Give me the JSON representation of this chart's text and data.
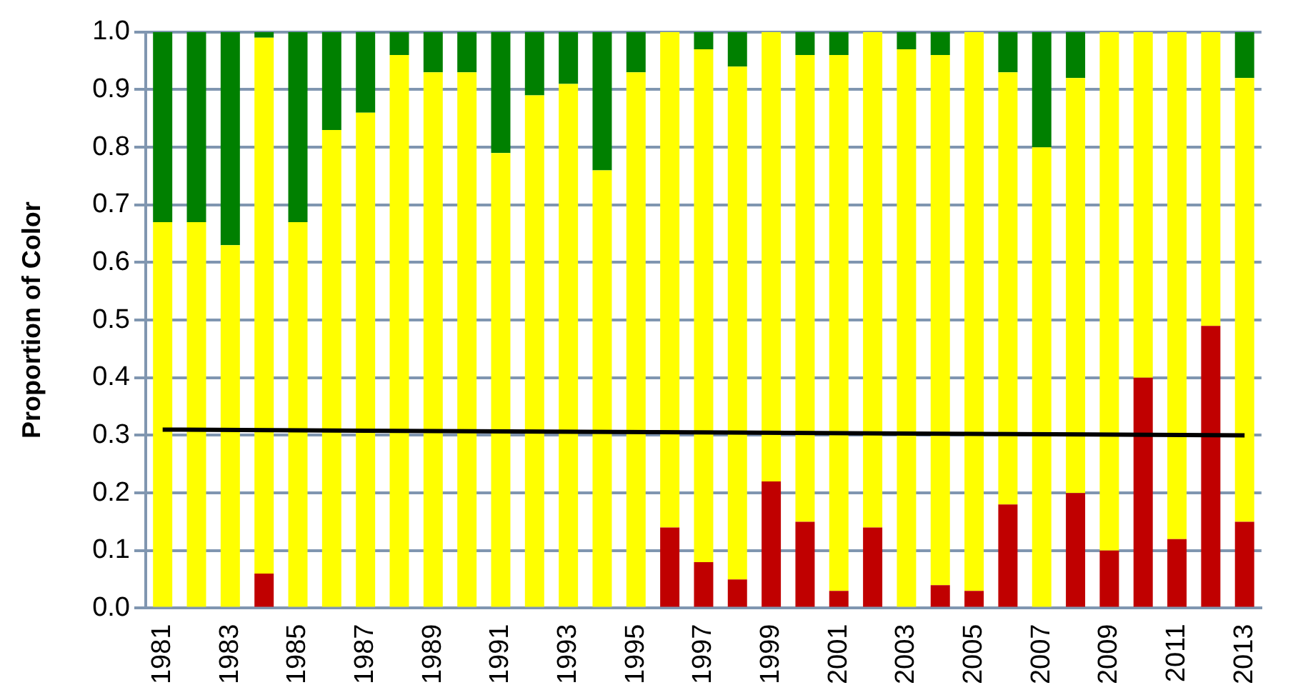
{
  "chart_data": {
    "type": "bar",
    "stacked": true,
    "ylabel": "Proportion of Color",
    "categories": [
      "1981",
      null,
      "1983",
      null,
      "1985",
      null,
      "1987",
      null,
      "1989",
      null,
      "1991",
      null,
      "1993",
      null,
      "1995",
      null,
      "1997",
      null,
      "1999",
      null,
      "2001",
      null,
      "2003",
      null,
      "2005",
      null,
      "2007",
      null,
      "2009",
      null,
      "2011",
      null,
      "2013"
    ],
    "series": [
      {
        "color": "#c00000",
        "values": [
          0,
          0,
          0,
          0.06,
          0,
          0,
          0,
          0,
          0,
          0,
          0,
          0,
          0,
          0,
          0,
          0.14,
          0.08,
          0.05,
          0.22,
          0.15,
          0.03,
          0.14,
          0,
          0.04,
          0.03,
          0.18,
          0,
          0.2,
          0.1,
          0.4,
          0.12,
          0.49,
          0.15
        ]
      },
      {
        "color": "#ffff00",
        "values": [
          0.67,
          0.67,
          0.63,
          0.93,
          0.67,
          0.83,
          0.86,
          0.96,
          0.93,
          0.93,
          0.79,
          0.89,
          0.91,
          0.76,
          0.93,
          0.86,
          0.89,
          0.89,
          0.78,
          0.81,
          0.93,
          0.86,
          0.97,
          0.92,
          0.97,
          0.75,
          0.8,
          0.72,
          0.9,
          0.6,
          0.88,
          0.51,
          0.77
        ]
      },
      {
        "color": "#008000",
        "values": [
          0.33,
          0.33,
          0.37,
          0.01,
          0.33,
          0.17,
          0.14,
          0.04,
          0.07,
          0.07,
          0.21,
          0.11,
          0.09,
          0.24,
          0.07,
          0,
          0.03,
          0.06,
          0,
          0.04,
          0.04,
          0,
          0.03,
          0.04,
          0,
          0.07,
          0.2,
          0.08,
          0,
          0,
          0,
          0,
          0.08
        ]
      },
      {
        "type": "line",
        "color": "#000000",
        "values": [
          0.31,
          null,
          null,
          null,
          null,
          null,
          null,
          null,
          null,
          null,
          null,
          null,
          null,
          null,
          null,
          null,
          null,
          null,
          null,
          null,
          null,
          null,
          null,
          null,
          null,
          null,
          null,
          null,
          null,
          null,
          null,
          null,
          0.3
        ]
      }
    ],
    "ylim": [
      0,
      1
    ],
    "yticks": [
      {
        "value": 0,
        "label": "0.0"
      },
      0.1,
      0.2,
      0.3,
      0.4,
      0.5,
      0.6,
      0.7,
      0.8,
      0.9,
      {
        "value": 1,
        "label": "1.0"
      }
    ],
    "grid": "y",
    "legend": false,
    "marker": "none"
  }
}
